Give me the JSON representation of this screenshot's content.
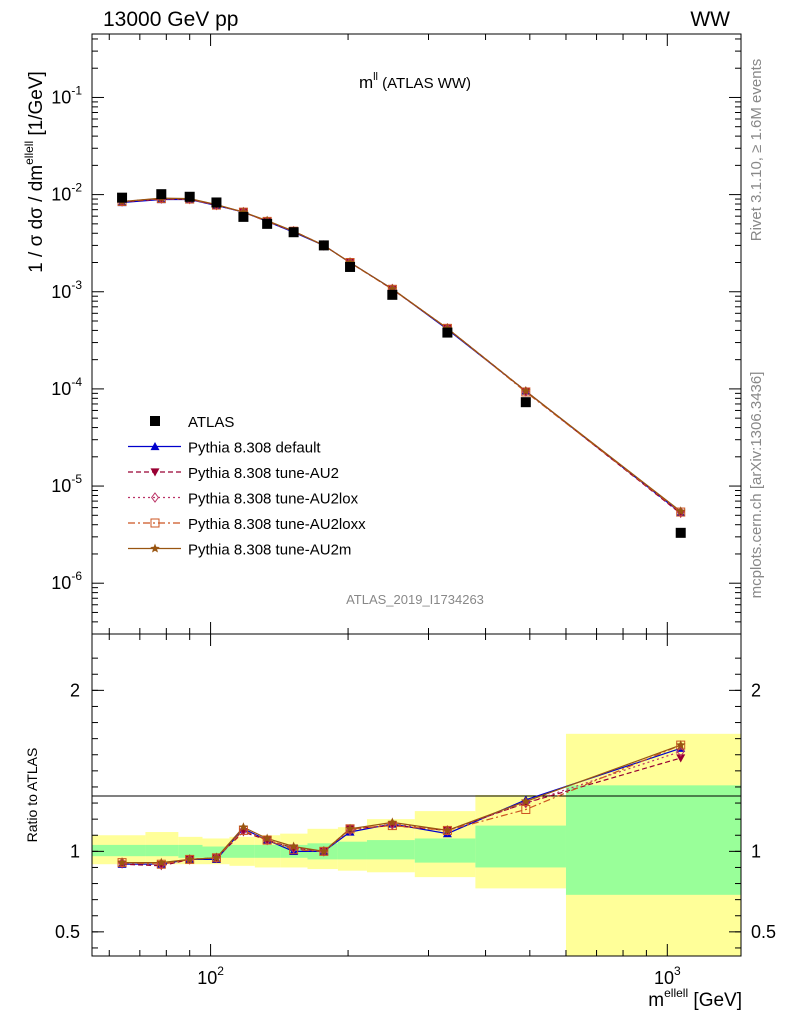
{
  "header": {
    "energy_label": "13000 GeV pp",
    "process_label": "WW"
  },
  "side_labels": {
    "rivet": "Rivet 3.1.10, ≥ 1.6M events",
    "mcplots": "mcplots.cern.ch [arXiv:1306.3436]"
  },
  "watermark": "ATLAS_2019_I1734263",
  "chart_data": [
    {
      "type": "line",
      "title": "m",
      "title_sup": "ll",
      "title_suffix": " (ATLAS WW)",
      "ylabel": "1 / σ  dσ / dm",
      "ylabel_sup": "ellell",
      "ylabel_unit": " [1/GeV]",
      "yscale": "log",
      "xscale": "log",
      "xlim": [
        55,
        1450
      ],
      "ylim": [
        3e-07,
        0.45
      ],
      "y_ticks": [
        "10^-1",
        "10^-2",
        "10^-3",
        "10^-4",
        "10^-5",
        "10^-6"
      ],
      "x": [
        64,
        78,
        90,
        103,
        118,
        133,
        152,
        177,
        202,
        250,
        330,
        490,
        1070
      ],
      "data": {
        "name": "ATLAS",
        "values": [
          0.0093,
          0.0101,
          0.0095,
          0.0083,
          0.0059,
          0.005,
          0.0041,
          0.003,
          0.0018,
          0.00093,
          0.00038,
          7.3e-05,
          3.3e-06
        ]
      },
      "series": [
        {
          "name": "Pythia 8.308 default",
          "color": "#0000cc",
          "marker": "triangle-up",
          "dash": "solid",
          "values": [
            0.0083,
            0.0089,
            0.0089,
            0.0077,
            0.0066,
            0.0053,
            0.0041,
            0.003,
            0.002,
            0.00107,
            0.00041,
            9.5e-05,
            5.3e-06
          ]
        },
        {
          "name": "Pythia 8.308 tune-AU2",
          "color": "#990033",
          "marker": "triangle-down",
          "dash": "dashed",
          "values": [
            0.0084,
            0.009,
            0.009,
            0.0078,
            0.0066,
            0.0053,
            0.0042,
            0.003,
            0.002,
            0.00106,
            0.00042,
            9.5e-05,
            5.2e-06
          ]
        },
        {
          "name": "Pythia 8.308 tune-AU2lox",
          "color": "#bb3366",
          "marker": "diamond-open",
          "dash": "dotted",
          "values": [
            0.0085,
            0.0091,
            0.009,
            0.0078,
            0.0066,
            0.0053,
            0.0042,
            0.003,
            0.002,
            0.00107,
            0.00042,
            9.4e-05,
            5.4e-06
          ]
        },
        {
          "name": "Pythia 8.308 tune-AU2loxx",
          "color": "#cc5522",
          "marker": "square-open",
          "dash": "dashdot",
          "values": [
            0.0085,
            0.0091,
            0.009,
            0.0078,
            0.0066,
            0.0053,
            0.0042,
            0.003,
            0.002,
            0.00106,
            0.00042,
            9.3e-05,
            5.4e-06
          ]
        },
        {
          "name": "Pythia 8.308 tune-AU2m",
          "color": "#995511",
          "marker": "star",
          "dash": "solid",
          "values": [
            0.0085,
            0.0092,
            0.0091,
            0.0079,
            0.0066,
            0.0054,
            0.0042,
            0.003,
            0.002,
            0.00107,
            0.00042,
            9.5e-05,
            5.5e-06
          ]
        }
      ],
      "legend_position": "lower-left"
    },
    {
      "type": "line",
      "ylabel": "Ratio to ATLAS",
      "xlabel": "m",
      "xlabel_sup": "ellell",
      "xlabel_unit": " [GeV]",
      "xscale": "log",
      "xlim": [
        55,
        1450
      ],
      "ylim": [
        0.35,
        2.35
      ],
      "y_ticks": [
        "0.5",
        "1",
        "2"
      ],
      "x_ticks": [
        "10^2",
        "10^3"
      ],
      "x": [
        64,
        78,
        90,
        103,
        118,
        133,
        152,
        177,
        202,
        250,
        330,
        490,
        1070
      ],
      "bin_edges": [
        55,
        72,
        85,
        96,
        110,
        125,
        142,
        163,
        190,
        220,
        280,
        380,
        600,
        1450
      ],
      "band_inner": [
        [
          0.97,
          1.04
        ],
        [
          0.97,
          1.04
        ],
        [
          0.96,
          1.04
        ],
        [
          0.96,
          1.03
        ],
        [
          0.96,
          1.04
        ],
        [
          0.96,
          1.04
        ],
        [
          0.96,
          1.04
        ],
        [
          0.95,
          1.05
        ],
        [
          0.95,
          1.06
        ],
        [
          0.95,
          1.07
        ],
        [
          0.93,
          1.08
        ],
        [
          0.9,
          1.16
        ],
        [
          0.73,
          1.41
        ]
      ],
      "band_outer": [
        [
          0.92,
          1.1
        ],
        [
          0.92,
          1.12
        ],
        [
          0.92,
          1.09
        ],
        [
          0.92,
          1.08
        ],
        [
          0.91,
          1.09
        ],
        [
          0.9,
          1.1
        ],
        [
          0.9,
          1.11
        ],
        [
          0.89,
          1.14
        ],
        [
          0.88,
          1.15
        ],
        [
          0.87,
          1.2
        ],
        [
          0.84,
          1.25
        ],
        [
          0.77,
          1.35
        ],
        [
          0.35,
          1.73
        ]
      ],
      "series": [
        {
          "name": "Pythia 8.308 default",
          "values": [
            0.92,
            0.92,
            0.95,
            0.95,
            1.14,
            1.07,
            1.0,
            1.0,
            1.12,
            1.17,
            1.11,
            1.32,
            1.64
          ]
        },
        {
          "name": "Pythia 8.308 tune-AU2",
          "values": [
            0.92,
            0.91,
            0.95,
            0.96,
            1.12,
            1.07,
            1.02,
            1.0,
            1.14,
            1.16,
            1.13,
            1.3,
            1.58
          ]
        },
        {
          "name": "Pythia 8.308 tune-AU2lox",
          "values": [
            0.93,
            0.92,
            0.95,
            0.96,
            1.13,
            1.07,
            1.02,
            1.0,
            1.13,
            1.17,
            1.13,
            1.3,
            1.62
          ]
        },
        {
          "name": "Pythia 8.308 tune-AU2loxx",
          "values": [
            0.93,
            0.92,
            0.95,
            0.96,
            1.13,
            1.07,
            1.01,
            1.0,
            1.14,
            1.16,
            1.13,
            1.26,
            1.66
          ]
        },
        {
          "name": "Pythia 8.308 tune-AU2m",
          "values": [
            0.93,
            0.93,
            0.95,
            0.96,
            1.15,
            1.08,
            1.03,
            1.0,
            1.14,
            1.18,
            1.13,
            1.31,
            1.66
          ]
        }
      ]
    }
  ]
}
